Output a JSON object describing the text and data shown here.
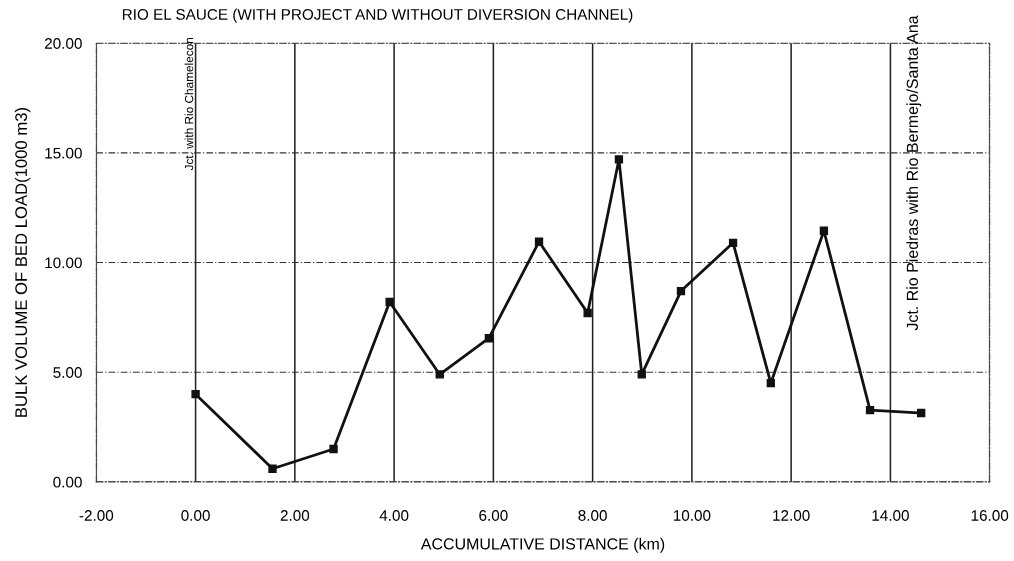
{
  "chart_data": {
    "type": "line",
    "title": "RIO EL SAUCE (WITH PROJECT AND WITHOUT DIVERSION CHANNEL)",
    "xlabel": "ACCUMULATIVE DISTANCE (km)",
    "ylabel": "BULK VOLUME OF BED LOAD(1000 m3)",
    "x": [
      0.0,
      1.55,
      2.78,
      3.91,
      4.92,
      5.91,
      6.92,
      7.9,
      8.53,
      8.99,
      9.78,
      10.83,
      11.59,
      12.66,
      13.59,
      14.62
    ],
    "series": [
      {
        "color": "#111111",
        "values": [
          4.0,
          0.6,
          1.5,
          8.2,
          4.9,
          6.55,
          10.95,
          7.7,
          14.7,
          4.9,
          8.7,
          10.9,
          4.5,
          11.45,
          3.27,
          3.14
        ]
      }
    ],
    "xlim": [
      -2,
      16
    ],
    "ylim": [
      0,
      20
    ],
    "xticks": [
      {
        "value": -2,
        "label": "-2.00"
      },
      {
        "value": 0,
        "label": "0.00"
      },
      {
        "value": 2,
        "label": "2.00"
      },
      {
        "value": 4,
        "label": "4.00"
      },
      {
        "value": 6,
        "label": "6.00"
      },
      {
        "value": 8,
        "label": "8.00"
      },
      {
        "value": 10,
        "label": "10.00"
      },
      {
        "value": 12,
        "label": "12.00"
      },
      {
        "value": 14,
        "label": "14.00"
      },
      {
        "value": 16,
        "label": "16.00"
      }
    ],
    "yticks": [
      {
        "value": 0,
        "label": "0.00"
      },
      {
        "value": 5,
        "label": "5.00"
      },
      {
        "value": 10,
        "label": "10.00"
      },
      {
        "value": 15,
        "label": "15.00"
      },
      {
        "value": 20,
        "label": "20.00"
      }
    ],
    "annotations": [
      "Jct. with Rio Chamelecon",
      "Jct. Rio Piedras with Rio Bermejo/Santa Ana"
    ],
    "grid": true,
    "marker": "square",
    "line_style": "solid"
  }
}
